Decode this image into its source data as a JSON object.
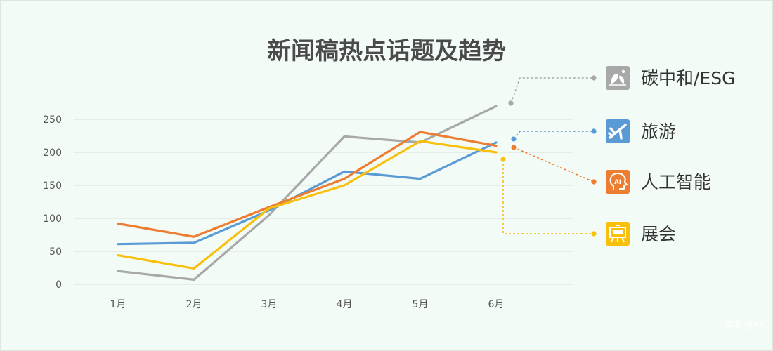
{
  "chart_data": {
    "type": "line",
    "title": "新闻稿热点话题及趋势",
    "categories": [
      "1月",
      "2月",
      "3月",
      "4月",
      "5月",
      "6月"
    ],
    "ylim": [
      0,
      250
    ],
    "yticks": [
      "0",
      "50",
      "100",
      "150",
      "200",
      "250"
    ],
    "grid": true,
    "legend_position": "right",
    "series": [
      {
        "name": "碳中和/ESG",
        "color": "#a8a8a8",
        "icon": "leaf-icon",
        "values": [
          20,
          7,
          105,
          224,
          215,
          270
        ]
      },
      {
        "name": "旅游",
        "color": "#5b9bd5",
        "icon": "airplane-icon",
        "values": [
          61,
          63,
          112,
          171,
          160,
          215
        ]
      },
      {
        "name": "人工智能",
        "color": "#ed7d31",
        "icon": "ai-head-icon",
        "values": [
          92,
          72,
          117,
          160,
          231,
          210
        ]
      },
      {
        "name": "展会",
        "color": "#f8c00c",
        "icon": "easel-icon",
        "values": [
          44,
          24,
          115,
          150,
          217,
          200
        ]
      }
    ]
  },
  "watermark": "知乎 @XX"
}
